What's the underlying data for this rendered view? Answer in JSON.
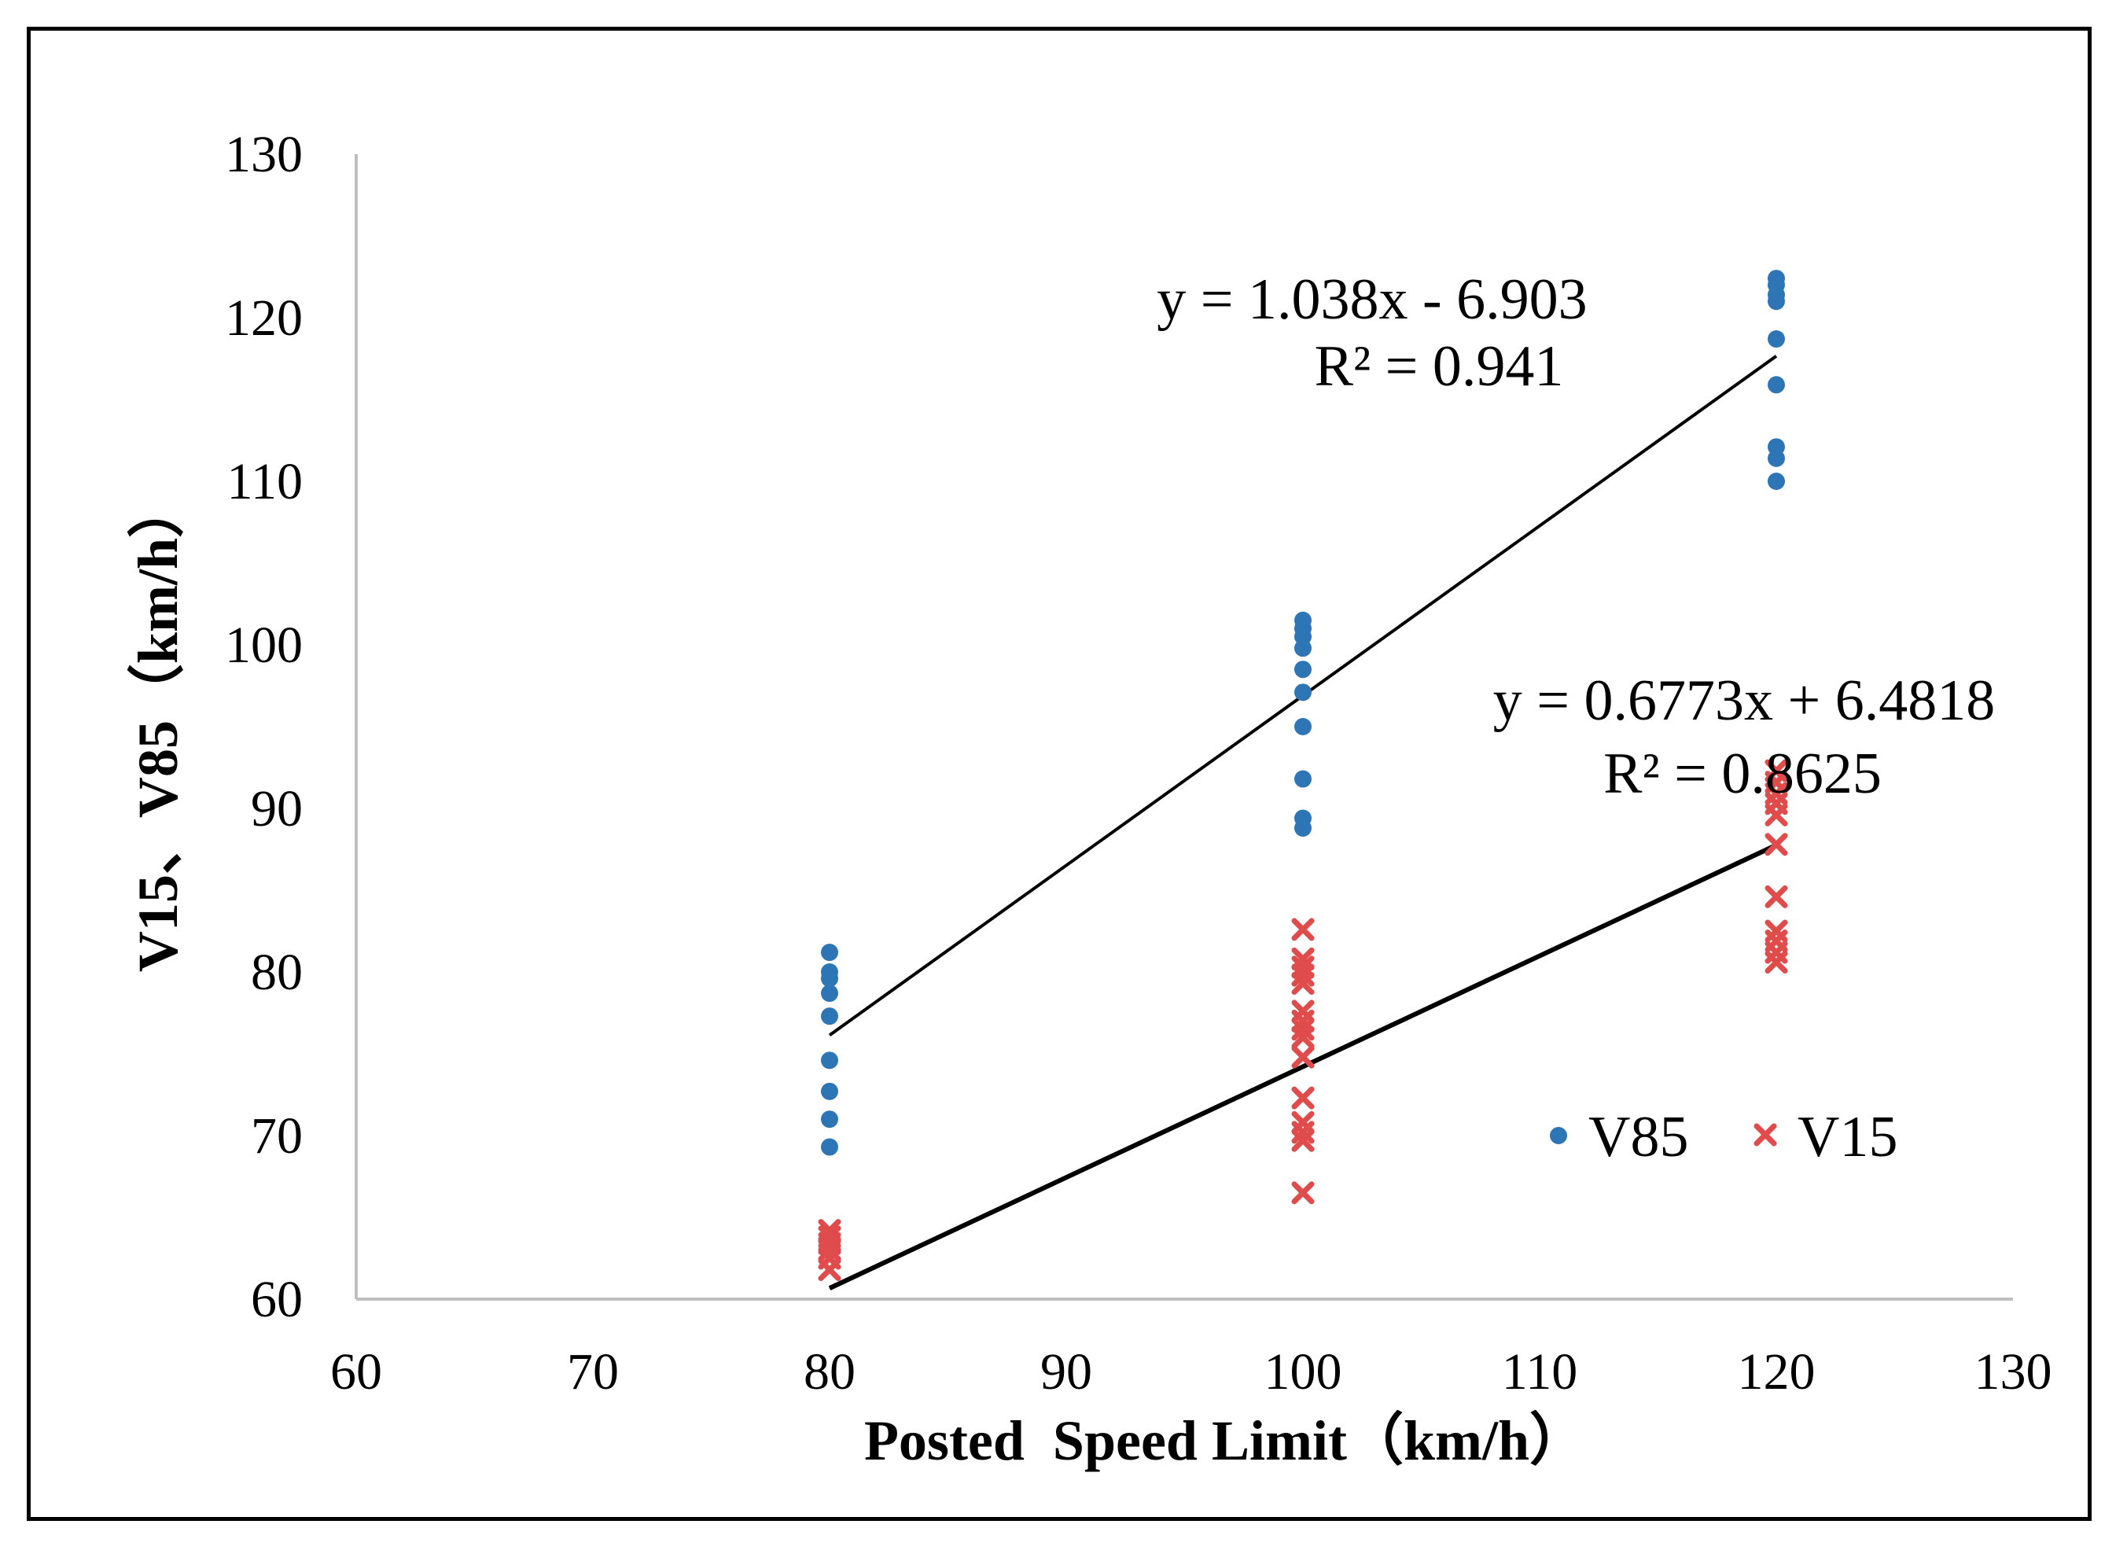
{
  "chart_data": {
    "type": "scatter",
    "title": "",
    "xlabel": "Posted  Speed Limit（km/h）",
    "ylabel": "V15、V85（km/h）",
    "xlim": [
      60,
      130
    ],
    "ylim": [
      60,
      130
    ],
    "x_ticks": [
      "60",
      "70",
      "80",
      "90",
      "100",
      "110",
      "120",
      "130"
    ],
    "y_ticks": [
      "60",
      "70",
      "80",
      "90",
      "100",
      "110",
      "120",
      "130"
    ],
    "grid": false,
    "legend_position": "bottom-right",
    "series": [
      {
        "name": "V85",
        "marker": "circle",
        "color": "#2E75B6",
        "points": [
          [
            80,
            81.2
          ],
          [
            80,
            80.0
          ],
          [
            80,
            79.6
          ],
          [
            80,
            78.7
          ],
          [
            80,
            77.3
          ],
          [
            80,
            74.6
          ],
          [
            80,
            72.7
          ],
          [
            80,
            71.0
          ],
          [
            80,
            69.3
          ],
          [
            100,
            101.5
          ],
          [
            100,
            101.0
          ],
          [
            100,
            100.5
          ],
          [
            100,
            99.8
          ],
          [
            100,
            98.5
          ],
          [
            100,
            97.1
          ],
          [
            100,
            95.0
          ],
          [
            100,
            91.8
          ],
          [
            100,
            89.4
          ],
          [
            100,
            88.8
          ],
          [
            120,
            122.4
          ],
          [
            120,
            122.0
          ],
          [
            120,
            121.4
          ],
          [
            120,
            121.0
          ],
          [
            120,
            118.7
          ],
          [
            120,
            115.9
          ],
          [
            120,
            112.1
          ],
          [
            120,
            111.4
          ],
          [
            120,
            110.0
          ]
        ],
        "trendline": {
          "slope": 1.038,
          "intercept": -6.903,
          "x_range": [
            80,
            120
          ],
          "equation": "y = 1.038x - 6.903",
          "r2": "R² = 0.941"
        }
      },
      {
        "name": "V15",
        "marker": "x",
        "color": "#E04B4B",
        "points": [
          [
            80,
            64.2
          ],
          [
            80,
            63.8
          ],
          [
            80,
            63.4
          ],
          [
            80,
            63.0
          ],
          [
            80,
            62.5
          ],
          [
            80,
            61.8
          ],
          [
            100,
            82.6
          ],
          [
            100,
            80.8
          ],
          [
            100,
            80.3
          ],
          [
            100,
            79.8
          ],
          [
            100,
            79.3
          ],
          [
            100,
            77.6
          ],
          [
            100,
            77.0
          ],
          [
            100,
            76.5
          ],
          [
            100,
            76.0
          ],
          [
            100,
            74.8
          ],
          [
            100,
            72.3
          ],
          [
            100,
            70.8
          ],
          [
            100,
            70.2
          ],
          [
            100,
            69.7
          ],
          [
            100,
            66.5
          ],
          [
            120,
            92.3
          ],
          [
            120,
            91.6
          ],
          [
            120,
            90.9
          ],
          [
            120,
            90.3
          ],
          [
            120,
            89.6
          ],
          [
            120,
            87.8
          ],
          [
            120,
            84.6
          ],
          [
            120,
            82.5
          ],
          [
            120,
            81.9
          ],
          [
            120,
            81.2
          ],
          [
            120,
            80.6
          ]
        ],
        "trendline": {
          "slope": 0.6773,
          "intercept": 6.4818,
          "x_range": [
            80,
            120
          ],
          "equation": "y = 0.6773x + 6.4818",
          "r2": "R² = 0.8625"
        }
      }
    ]
  },
  "colors": {
    "axis": "#BFBFBF",
    "trendline": "#000000",
    "frame": "#000000"
  }
}
